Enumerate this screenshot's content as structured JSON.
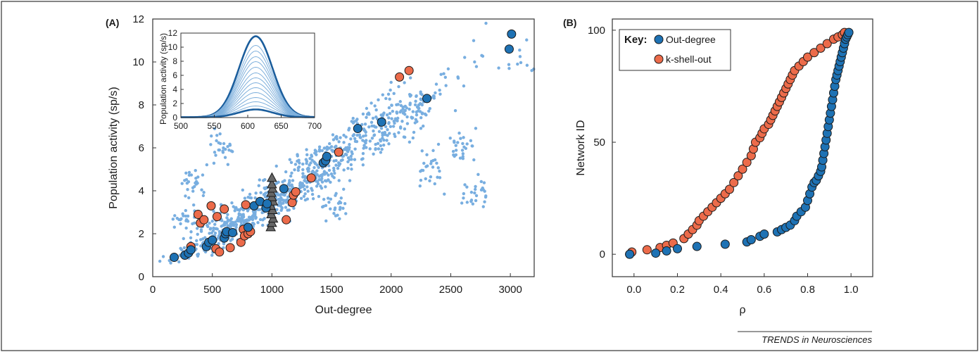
{
  "panels": {
    "a_label": "(A)",
    "b_label": "(B)"
  },
  "footer": "TRENDS in Neurosciences",
  "key": {
    "title": "Key:",
    "items": [
      "Out-degree",
      "k-shell-out"
    ]
  },
  "colors": {
    "blue_marker": "#1e72b4",
    "orange_marker": "#ec6b4a",
    "cloud": "#78aee0",
    "triangle": "#666666",
    "inset_line": "#1a5d9c",
    "frame": "#333333"
  },
  "chart_data": [
    {
      "type": "scatter",
      "panel": "(A)",
      "xlabel": "Out-degree",
      "ylabel": "Population activity (sp/s)",
      "xlim": [
        0,
        3200
      ],
      "ylim": [
        0,
        12
      ],
      "xticks": [
        "0",
        "500",
        "1000",
        "1500",
        "2000",
        "2500",
        "3000"
      ],
      "yticks": [
        "0",
        "2",
        "4",
        "6",
        "8",
        "10",
        "12"
      ],
      "series": [
        {
          "name": "Out-degree",
          "marker": "circle",
          "points": [
            [
              180,
              0.9
            ],
            [
              270,
              1.0
            ],
            [
              300,
              1.1
            ],
            [
              320,
              1.25
            ],
            [
              450,
              1.4
            ],
            [
              470,
              1.6
            ],
            [
              500,
              1.7
            ],
            [
              600,
              1.8
            ],
            [
              610,
              2.0
            ],
            [
              620,
              2.1
            ],
            [
              670,
              2.05
            ],
            [
              800,
              2.3
            ],
            [
              850,
              3.3
            ],
            [
              900,
              3.5
            ],
            [
              950,
              3.2
            ],
            [
              960,
              3.4
            ],
            [
              1100,
              4.1
            ],
            [
              1430,
              5.3
            ],
            [
              1450,
              5.4
            ],
            [
              1460,
              5.6
            ],
            [
              1720,
              6.9
            ],
            [
              1920,
              7.2
            ],
            [
              2300,
              8.3
            ],
            [
              2990,
              10.6
            ],
            [
              3010,
              11.3
            ]
          ]
        },
        {
          "name": "k-shell-out",
          "marker": "circle",
          "points": [
            [
              320,
              1.4
            ],
            [
              380,
              2.9
            ],
            [
              400,
              2.5
            ],
            [
              430,
              2.65
            ],
            [
              490,
              3.3
            ],
            [
              530,
              1.3
            ],
            [
              560,
              1.15
            ],
            [
              540,
              2.8
            ],
            [
              600,
              3.15
            ],
            [
              650,
              1.35
            ],
            [
              740,
              1.6
            ],
            [
              760,
              2.2
            ],
            [
              770,
              1.9
            ],
            [
              780,
              3.35
            ],
            [
              800,
              2.0
            ],
            [
              820,
              2.1
            ],
            [
              1120,
              2.65
            ],
            [
              1170,
              3.45
            ],
            [
              1180,
              3.8
            ],
            [
              1200,
              3.95
            ],
            [
              1330,
              4.6
            ],
            [
              1560,
              5.8
            ],
            [
              2070,
              9.3
            ],
            [
              2150,
              9.6
            ]
          ]
        },
        {
          "name": "",
          "marker": "triangle",
          "points": [
            [
              990,
              2.3
            ],
            [
              1000,
              2.5
            ],
            [
              1010,
              2.7
            ],
            [
              995,
              2.9
            ],
            [
              1005,
              3.1
            ],
            [
              990,
              3.3
            ],
            [
              1010,
              3.5
            ],
            [
              1000,
              3.7
            ],
            [
              995,
              3.9
            ],
            [
              1005,
              4.1
            ],
            [
              1000,
              4.3
            ],
            [
              1000,
              4.6
            ]
          ]
        },
        {
          "name": "",
          "marker": "dot",
          "points": [
            [
              60,
              0.72
            ],
            [
              140,
              0.75
            ],
            [
              230,
              1.0
            ],
            [
              340,
              1.3
            ],
            [
              420,
              1.55
            ],
            [
              510,
              1.9
            ],
            [
              560,
              2.1
            ],
            [
              620,
              2.5
            ],
            [
              660,
              2.7
            ],
            [
              700,
              2.3
            ],
            [
              760,
              2.9
            ],
            [
              820,
              2.7
            ],
            [
              860,
              3.1
            ],
            [
              920,
              3.6
            ],
            [
              980,
              3.2
            ],
            [
              1040,
              3.9
            ],
            [
              1080,
              3.4
            ],
            [
              1140,
              4.3
            ],
            [
              1200,
              4.0
            ],
            [
              1260,
              4.8
            ],
            [
              1320,
              4.4
            ],
            [
              1380,
              5.2
            ],
            [
              1440,
              4.9
            ],
            [
              1500,
              5.6
            ],
            [
              1560,
              5.3
            ],
            [
              1620,
              6.0
            ],
            [
              1700,
              6.3
            ],
            [
              1780,
              6.8
            ],
            [
              1860,
              6.6
            ],
            [
              1940,
              7.3
            ],
            [
              2020,
              7.0
            ],
            [
              2100,
              7.8
            ],
            [
              2180,
              7.4
            ],
            [
              2260,
              8.0
            ],
            [
              2360,
              8.4
            ],
            [
              2460,
              8.9
            ],
            [
              2560,
              9.3
            ],
            [
              2700,
              10.0
            ],
            [
              2760,
              10.3
            ],
            [
              2990,
              9.7
            ],
            [
              3060,
              9.9
            ],
            [
              3180,
              9.6
            ],
            [
              280,
              2.6
            ],
            [
              350,
              4.2
            ],
            [
              560,
              5.9
            ],
            [
              1530,
              3.2
            ],
            [
              2350,
              5.1
            ],
            [
              2600,
              6.2
            ],
            [
              2700,
              3.9
            ]
          ]
        }
      ]
    },
    {
      "type": "line",
      "panel": "inset",
      "xlabel": "",
      "ylabel": "Population activity (sp/s)",
      "xlim": [
        500,
        700
      ],
      "ylim": [
        0,
        12
      ],
      "xticks": [
        "500",
        "550",
        "600",
        "650",
        "700"
      ],
      "yticks": [
        "0",
        "2",
        "4",
        "6",
        "8",
        "10",
        "12"
      ],
      "peak_x": 612,
      "width": 25,
      "peaks": [
        11.5,
        10.2,
        9.4,
        8.6,
        7.9,
        7.1,
        6.3,
        5.6,
        4.9,
        4.2,
        3.5,
        2.8,
        2.2,
        1.6,
        1.1
      ],
      "bold_peaks": [
        11.5,
        1.1
      ]
    },
    {
      "type": "scatter",
      "panel": "(B)",
      "xlabel": "ρ",
      "ylabel": "Network ID",
      "xlim": [
        -0.1,
        1.1
      ],
      "ylim": [
        -10,
        105
      ],
      "xticks": [
        "0.0",
        "0.2",
        "0.4",
        "0.6",
        "0.8",
        "1.0"
      ],
      "yticks": [
        "0",
        "50",
        "100"
      ],
      "series": [
        {
          "name": "Out-degree",
          "x": [
            -0.02,
            0.1,
            0.15,
            0.2,
            0.29,
            0.42,
            0.52,
            0.54,
            0.58,
            0.6,
            0.66,
            0.68,
            0.7,
            0.72,
            0.74,
            0.75,
            0.77,
            0.79,
            0.8,
            0.81,
            0.82,
            0.83,
            0.84,
            0.85,
            0.86,
            0.865,
            0.87,
            0.875,
            0.88,
            0.885,
            0.89,
            0.895,
            0.9,
            0.905,
            0.91,
            0.915,
            0.92,
            0.925,
            0.93,
            0.935,
            0.94,
            0.945,
            0.95,
            0.955,
            0.96,
            0.965,
            0.97,
            0.975,
            0.98,
            0.985,
            0.99
          ],
          "y": [
            0,
            0.5,
            1.5,
            2.5,
            3.5,
            4.5,
            5.5,
            6.5,
            8,
            9,
            10,
            11,
            12,
            13,
            15,
            17,
            19,
            21,
            24,
            27,
            30,
            32,
            33,
            35,
            37,
            39,
            42,
            45,
            48,
            51,
            54,
            57,
            60,
            63,
            66,
            69,
            72,
            75,
            78,
            80,
            82,
            84,
            86,
            88,
            90,
            92,
            94,
            96,
            97,
            98,
            99
          ]
        },
        {
          "name": "k-shell-out",
          "x": [
            -0.02,
            -0.01,
            0.06,
            0.12,
            0.15,
            0.18,
            0.23,
            0.25,
            0.27,
            0.29,
            0.3,
            0.32,
            0.34,
            0.36,
            0.38,
            0.4,
            0.42,
            0.44,
            0.46,
            0.48,
            0.5,
            0.52,
            0.54,
            0.55,
            0.56,
            0.58,
            0.59,
            0.6,
            0.62,
            0.63,
            0.64,
            0.65,
            0.66,
            0.67,
            0.68,
            0.69,
            0.7,
            0.71,
            0.72,
            0.73,
            0.74,
            0.76,
            0.78,
            0.8,
            0.83,
            0.86,
            0.89,
            0.92,
            0.94,
            0.96,
            0.97
          ],
          "y": [
            0,
            1,
            2,
            3,
            4,
            5,
            7,
            9,
            11,
            13,
            15,
            17,
            19,
            21,
            23,
            25,
            27,
            29,
            32,
            35,
            38,
            41,
            44,
            47,
            50,
            52,
            54,
            56,
            58,
            60,
            62,
            64,
            66,
            68,
            70,
            72,
            74,
            76,
            78,
            80,
            82,
            84,
            86,
            88,
            90,
            92,
            94,
            96,
            97,
            98,
            99
          ]
        }
      ]
    }
  ]
}
